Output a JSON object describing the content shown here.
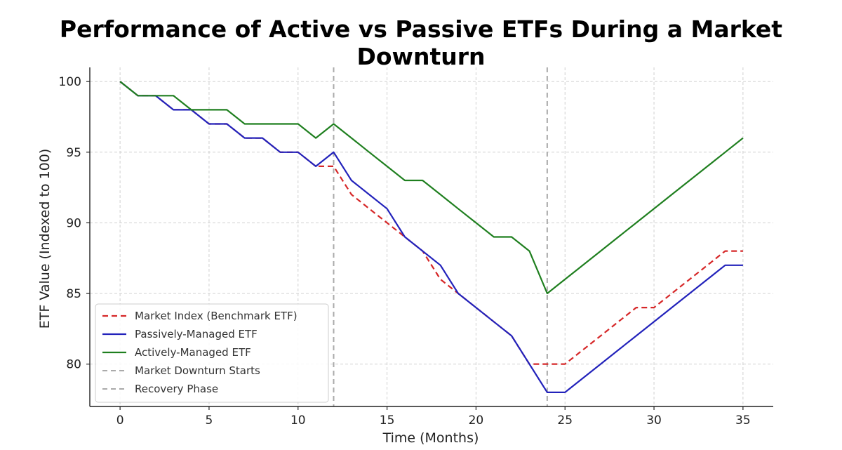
{
  "chart_data": {
    "type": "line",
    "title": "Performance of Active vs Passive ETFs During a Market Downturn",
    "xlabel": "Time (Months)",
    "ylabel": "ETF Value (Indexed to 100)",
    "xlim": [
      -1.7,
      36.7
    ],
    "ylim": [
      77,
      101
    ],
    "xticks": [
      0,
      5,
      10,
      15,
      20,
      25,
      30,
      35
    ],
    "yticks": [
      80,
      85,
      90,
      95,
      100
    ],
    "grid": true,
    "legend_position": "lower-left",
    "x": [
      0,
      1,
      2,
      3,
      4,
      5,
      6,
      7,
      8,
      9,
      10,
      11,
      12,
      13,
      14,
      15,
      16,
      17,
      18,
      19,
      20,
      21,
      22,
      23,
      24,
      25,
      26,
      27,
      28,
      29,
      30,
      31,
      32,
      33,
      34,
      35
    ],
    "series": [
      {
        "name": "Market Index (Benchmark ETF)",
        "color": "#d62728",
        "style": "dashed",
        "values": [
          100,
          99,
          99,
          98,
          98,
          97,
          97,
          96,
          96,
          95,
          95,
          94,
          94,
          92,
          91,
          90,
          89,
          88,
          86,
          85,
          84,
          83,
          82,
          80,
          80,
          80,
          81,
          82,
          83,
          84,
          84,
          85,
          86,
          87,
          88,
          88
        ]
      },
      {
        "name": "Passively-Managed ETF",
        "color": "#2222bb",
        "style": "solid",
        "values": [
          100,
          99,
          99,
          98,
          98,
          97,
          97,
          96,
          96,
          95,
          95,
          94,
          95,
          93,
          92,
          91,
          89,
          88,
          87,
          85,
          84,
          83,
          82,
          80,
          78,
          78,
          79,
          80,
          81,
          82,
          83,
          84,
          85,
          86,
          87,
          87
        ]
      },
      {
        "name": "Actively-Managed ETF",
        "color": "#1f7f1f",
        "style": "solid",
        "values": [
          100,
          99,
          99,
          99,
          98,
          98,
          98,
          97,
          97,
          97,
          97,
          96,
          97,
          96,
          95,
          94,
          93,
          93,
          92,
          91,
          90,
          89,
          89,
          88,
          85,
          86,
          87,
          88,
          89,
          90,
          91,
          92,
          93,
          94,
          95,
          96
        ]
      }
    ],
    "vlines": [
      {
        "name": "Market Downturn Starts",
        "x": 12,
        "color": "#aaaaaa",
        "style": "dashed"
      },
      {
        "name": "Recovery Phase",
        "x": 24,
        "color": "#aaaaaa",
        "style": "dashed"
      }
    ]
  }
}
